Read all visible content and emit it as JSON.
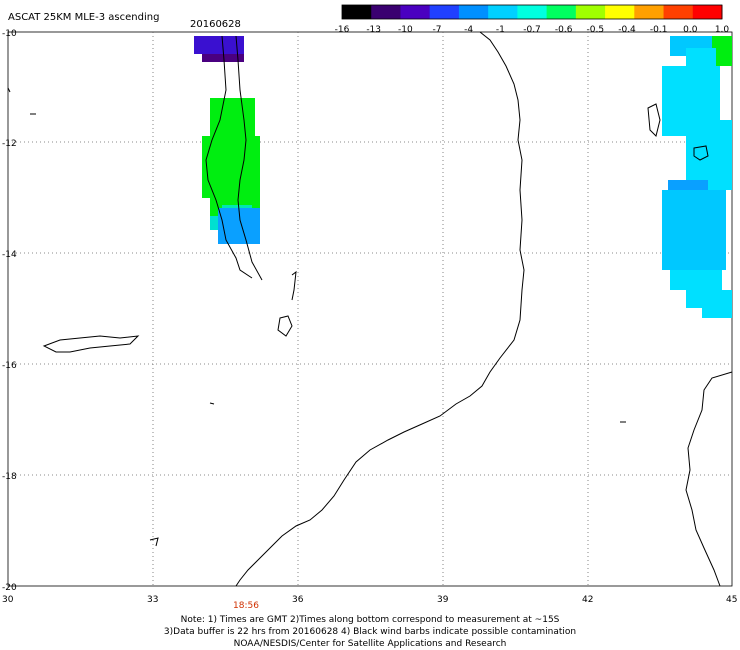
{
  "header": {
    "title": "ASCAT 25KM MLE-3 ascending",
    "date": "20160628"
  },
  "colorbar": {
    "labels": [
      "-16",
      "-13",
      "-10",
      "-7",
      "-4",
      "-1",
      "-0.7",
      "-0.6",
      "-0.5",
      "-0.4",
      "-0.1",
      "0.0",
      "1.0"
    ],
    "colors": [
      "#000000",
      "#3a0070",
      "#4a00c0",
      "#2040ff",
      "#0090ff",
      "#00d0ff",
      "#00ffe0",
      "#00ff60",
      "#a0ff00",
      "#ffff00",
      "#ffa000",
      "#ff4000",
      "#ff0000"
    ]
  },
  "axes": {
    "x_ticks": [
      "30",
      "33",
      "36",
      "39",
      "42",
      "45"
    ],
    "y_ticks": [
      "-10",
      "-12",
      "-14",
      "-16",
      "-18",
      "-20"
    ]
  },
  "time_label": "18:56",
  "notes": [
    "Note: 1) Times are GMT 2)Times along bottom correspond to measurement at ~15S",
    "3)Data buffer is 22 hrs from 20160628 4) Black wind barbs indicate possible contamination",
    "NOAA/NESDIS/Center for Satellite Applications and Research"
  ],
  "colors": {
    "purple_cells": "#3a10d0",
    "dark_purple_cells": "#4a0080",
    "green_cells": "#00ee10",
    "cyan_cells": "#00e0ff",
    "blue_cells": "#0aa0ff",
    "teal_cells": "#00e8b0",
    "time_label": "#d03000"
  }
}
